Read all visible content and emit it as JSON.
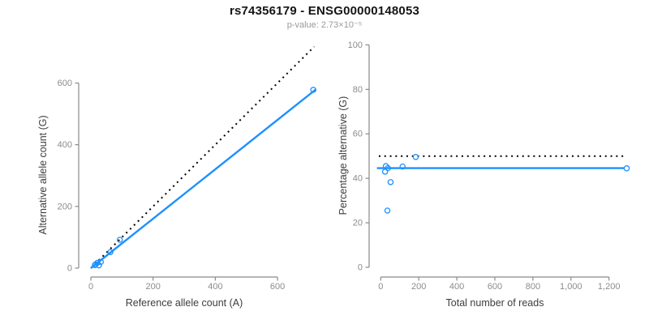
{
  "header": {
    "title": "rs74356179 - ENSG00000148053",
    "subtitle": "p-value: 2.73×10⁻⁵"
  },
  "colors": {
    "background": "#ffffff",
    "accent_blue": "#1E90FF",
    "reference_black": "#000000",
    "axis_line_gray": "#8a8a8a",
    "tick_label_gray": "#8c8c8c",
    "axis_title_dark": "#3d3d3d",
    "title_color": "#151515",
    "subtitle_gray": "#9a9a9a"
  },
  "chart_data": [
    {
      "id": "allele-counts",
      "type": "scatter",
      "xlabel": "Reference allele count (A)",
      "ylabel": "Alternative allele count (G)",
      "xticks": [
        0,
        200,
        400,
        600
      ],
      "xtick_labels": [
        "0",
        "200",
        "400",
        "600"
      ],
      "yticks": [
        0,
        200,
        400,
        600
      ],
      "ytick_labels": [
        "0",
        "200",
        "400",
        "600"
      ],
      "xlim": [
        0,
        730
      ],
      "ylim": [
        0,
        730
      ],
      "grid": false,
      "points": [
        [
          13,
          10
        ],
        [
          15,
          12
        ],
        [
          21,
          17
        ],
        [
          26,
          9
        ],
        [
          32,
          20
        ],
        [
          63,
          52
        ],
        [
          93,
          92
        ],
        [
          715,
          578
        ]
      ],
      "fit_line": {
        "from": [
          0,
          0
        ],
        "to": [
          724,
          580
        ],
        "style": "solid",
        "color": "#1E90FF",
        "meaning": "fitted ratio line"
      },
      "reference_line": {
        "from": [
          0,
          0
        ],
        "to": [
          718,
          718
        ],
        "style": "dotted",
        "color": "#000000",
        "meaning": "identity y = x"
      }
    },
    {
      "id": "percentage-vs-reads",
      "type": "scatter",
      "xlabel": "Total number of reads",
      "ylabel": "Percentage alternative (G)",
      "xticks": [
        0,
        200,
        400,
        600,
        800,
        1000,
        1200
      ],
      "xtick_labels": [
        "0",
        "200",
        "400",
        "600",
        "800",
        "1,000",
        "1,200"
      ],
      "yticks": [
        0,
        20,
        40,
        60,
        80,
        100
      ],
      "ytick_labels": [
        "0",
        "20",
        "40",
        "60",
        "80",
        "100"
      ],
      "xlim": [
        0,
        1300
      ],
      "ylim": [
        0,
        100
      ],
      "grid": false,
      "points": [
        [
          23,
          43
        ],
        [
          27,
          45.5
        ],
        [
          35,
          25.5
        ],
        [
          38,
          44.6
        ],
        [
          52,
          38.3
        ],
        [
          115,
          45.3
        ],
        [
          184,
          49.6
        ],
        [
          1293,
          44.5
        ]
      ],
      "mean_line": {
        "y": 44.6,
        "span": [
          -20,
          1280
        ],
        "style": "solid",
        "color": "#1E90FF",
        "meaning": "mean percentage alternative"
      },
      "reference_line": {
        "y": 50,
        "span": [
          -10,
          1280
        ],
        "style": "dotted",
        "color": "#000000",
        "meaning": "50% expectation"
      }
    }
  ]
}
